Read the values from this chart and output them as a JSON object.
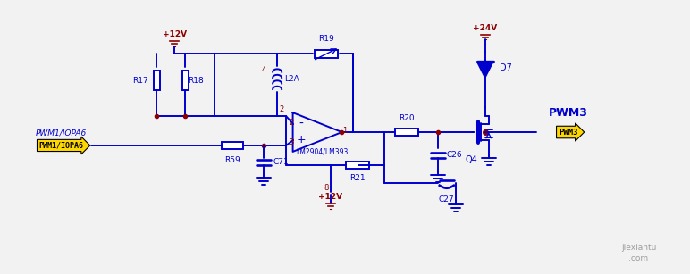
{
  "bg_color": "#f2f2f2",
  "circuit_color": "#0000cd",
  "red_brown": "#8b0000",
  "yellow_bg": "#ffd700",
  "components": {
    "pwm1_label": "PWM1/IOPA6",
    "pwm3_label": "PWM3",
    "r17": "R17",
    "r18": "R18",
    "r19": "R19",
    "r20": "R20",
    "r21": "R21",
    "r59": "R59",
    "c71": "C71",
    "c26": "C26",
    "c27": "C27",
    "l2a": "L2A",
    "d7": "D7",
    "q4": "Q4",
    "opamp": "LM2904/LM393",
    "vcc12_top": "+12V",
    "vcc24": "+24V",
    "vcc12_bot": "+12V"
  }
}
